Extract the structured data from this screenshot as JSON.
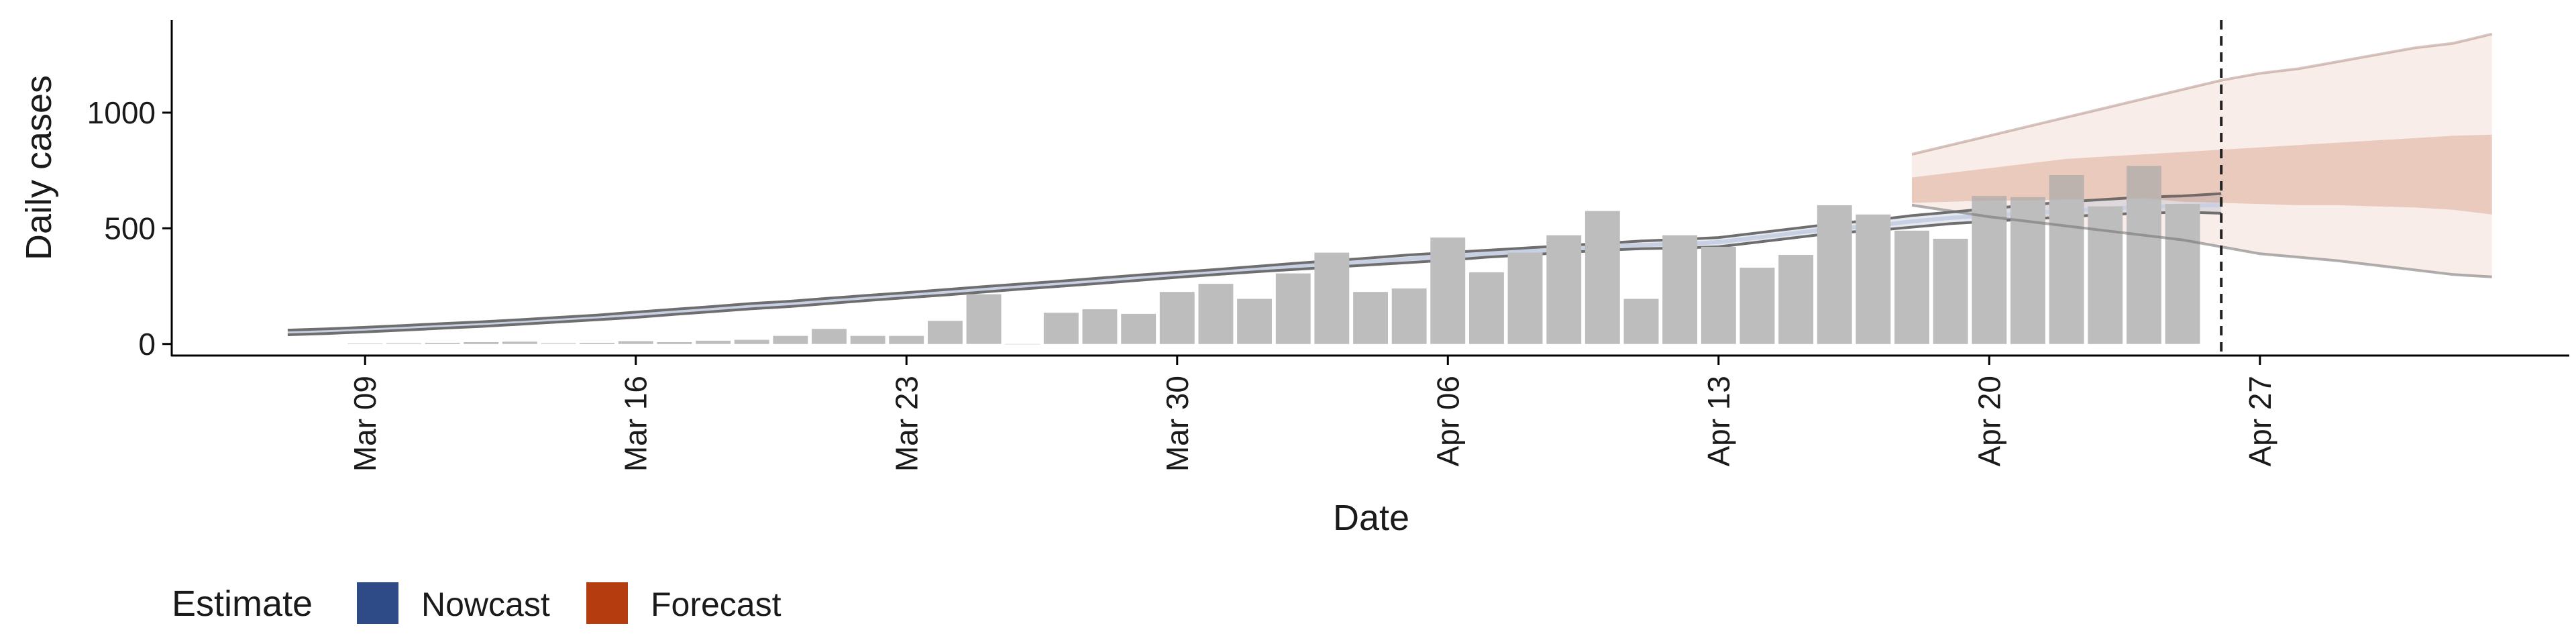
{
  "chart_data": {
    "type": "bar",
    "title": "",
    "xlabel": "Date",
    "ylabel": "Daily cases",
    "x_range": [
      "2020-03-04",
      "2020-05-05"
    ],
    "ylim": [
      -50,
      1400
    ],
    "y_ticks": [
      0,
      500,
      1000
    ],
    "x_ticks": [
      {
        "date": "2020-03-09",
        "label": "Mar 09"
      },
      {
        "date": "2020-03-16",
        "label": "Mar 16"
      },
      {
        "date": "2020-03-23",
        "label": "Mar 23"
      },
      {
        "date": "2020-03-30",
        "label": "Mar 30"
      },
      {
        "date": "2020-04-06",
        "label": "Apr 06"
      },
      {
        "date": "2020-04-13",
        "label": "Apr 13"
      },
      {
        "date": "2020-04-20",
        "label": "Apr 20"
      },
      {
        "date": "2020-04-27",
        "label": "Apr 27"
      }
    ],
    "grid": false,
    "bar_color": "#bdbdbd",
    "reference_line": {
      "date": "2020-04-26"
    },
    "observed": {
      "first_date": "2020-03-09",
      "values": [
        2,
        3,
        5,
        8,
        10,
        3,
        5,
        12,
        8,
        14,
        18,
        35,
        65,
        35,
        35,
        100,
        215,
        0,
        135,
        150,
        130,
        225,
        260,
        195,
        305,
        395,
        225,
        240,
        460,
        310,
        395,
        470,
        575,
        195,
        470,
        420,
        330,
        385,
        600,
        560,
        490,
        455,
        640,
        635,
        730,
        595,
        770,
        605
      ]
    },
    "legend": {
      "title": "Estimate",
      "position": "bottom-left",
      "items": [
        {
          "label": "Nowcast",
          "color": "#2e4a87"
        },
        {
          "label": "Forecast",
          "color": "#b43c0f"
        }
      ]
    },
    "nowcast": {
      "first_date": "2020-03-07",
      "color": "#2e4a87",
      "median": [
        50,
        55,
        62,
        70,
        78,
        86,
        95,
        105,
        115,
        125,
        138,
        150,
        162,
        172,
        185,
        198,
        210,
        222,
        235,
        248,
        260,
        272,
        285,
        298,
        310,
        322,
        335,
        345,
        355,
        368,
        378,
        390,
        400,
        410,
        420,
        428,
        432,
        440,
        460,
        480,
        500,
        510,
        530,
        545,
        555,
        565,
        575,
        585,
        592,
        598,
        600
      ],
      "upper": [
        60,
        65,
        72,
        80,
        88,
        96,
        105,
        115,
        125,
        138,
        150,
        162,
        175,
        185,
        198,
        210,
        222,
        235,
        248,
        260,
        272,
        285,
        298,
        310,
        322,
        335,
        348,
        360,
        372,
        385,
        395,
        405,
        415,
        425,
        435,
        445,
        452,
        460,
        480,
        500,
        520,
        535,
        555,
        570,
        585,
        600,
        615,
        625,
        635,
        640,
        650
      ],
      "lower": [
        40,
        45,
        52,
        60,
        68,
        76,
        85,
        95,
        105,
        115,
        128,
        140,
        152,
        162,
        175,
        188,
        200,
        212,
        225,
        238,
        250,
        262,
        275,
        288,
        300,
        312,
        322,
        332,
        342,
        352,
        362,
        375,
        385,
        395,
        405,
        412,
        415,
        420,
        440,
        460,
        480,
        490,
        505,
        520,
        530,
        540,
        550,
        560,
        565,
        570,
        565
      ]
    },
    "forecast": {
      "first_date": "2020-04-18",
      "color": "#b43c0f",
      "median": [
        660,
        670,
        680,
        690,
        700,
        710,
        715,
        720,
        720,
        725,
        730,
        735,
        740,
        735,
        740,
        740
      ],
      "inner_upper": [
        720,
        740,
        760,
        780,
        800,
        810,
        820,
        830,
        840,
        850,
        860,
        870,
        880,
        890,
        900,
        905
      ],
      "inner_lower": [
        610,
        615,
        620,
        620,
        625,
        625,
        630,
        615,
        610,
        605,
        600,
        600,
        595,
        590,
        580,
        560
      ],
      "outer_upper": [
        820,
        860,
        900,
        940,
        980,
        1020,
        1060,
        1100,
        1140,
        1170,
        1190,
        1220,
        1250,
        1280,
        1300,
        1340
      ],
      "outer_lower": [
        600,
        575,
        550,
        530,
        510,
        490,
        470,
        450,
        420,
        390,
        375,
        360,
        340,
        320,
        300,
        290
      ]
    }
  }
}
